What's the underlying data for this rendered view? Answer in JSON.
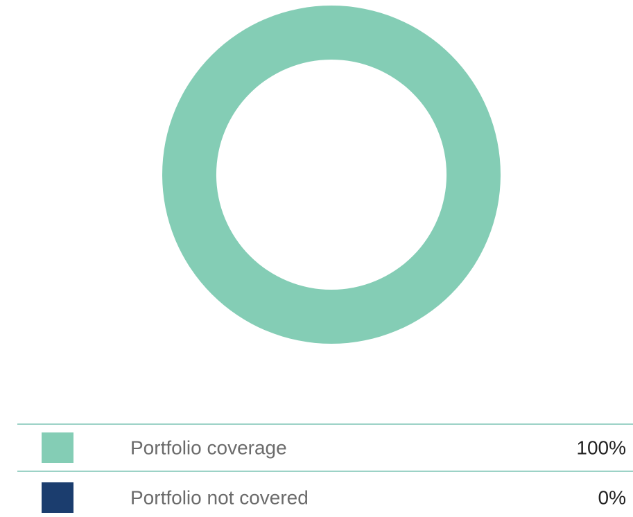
{
  "chart_data": {
    "type": "donut",
    "categories": [
      "Portfolio coverage",
      "Portfolio not covered"
    ],
    "values": [
      100,
      0
    ],
    "value_labels": [
      "100%",
      "0%"
    ],
    "colors": [
      "#84cdb5",
      "#1b3d6e"
    ]
  }
}
